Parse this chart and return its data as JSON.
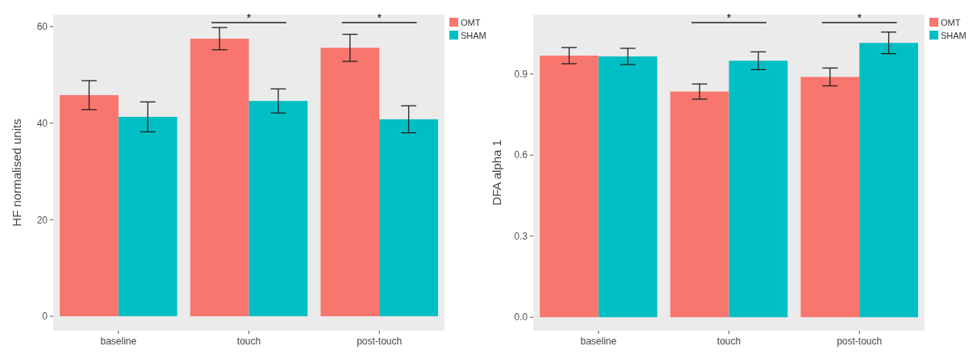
{
  "chart_data": [
    {
      "type": "bar",
      "ylabel": "HF normalised units",
      "categories": [
        "baseline",
        "touch",
        "post-touch"
      ],
      "series": [
        {
          "name": "OMT",
          "color": "#f8766d",
          "values": [
            45.8,
            57.5,
            55.6
          ],
          "errors": [
            3.0,
            2.3,
            2.8
          ]
        },
        {
          "name": "SHAM",
          "color": "#00bfc4",
          "values": [
            41.3,
            44.6,
            40.8
          ],
          "errors": [
            3.1,
            2.5,
            2.8
          ]
        }
      ],
      "ylim": [
        -3,
        62.5
      ],
      "yticks": [
        0,
        20,
        40,
        60
      ],
      "grid": false,
      "legend": "top right",
      "annotations": [
        "*",
        "*"
      ]
    },
    {
      "type": "bar",
      "ylabel": "DFA alpha 1",
      "categories": [
        "baseline",
        "touch",
        "post-touch"
      ],
      "series": [
        {
          "name": "OMT",
          "color": "#f8766d",
          "values": [
            0.968,
            0.835,
            0.889
          ],
          "errors": [
            0.03,
            0.028,
            0.033
          ]
        },
        {
          "name": "SHAM",
          "color": "#00bfc4",
          "values": [
            0.965,
            0.949,
            1.015
          ],
          "errors": [
            0.03,
            0.033,
            0.04
          ]
        }
      ],
      "ylim": [
        -0.05,
        1.12
      ],
      "yticks": [
        {
          "value": 0,
          "label": "0.0"
        },
        {
          "value": 0.3,
          "label": "0.3"
        },
        {
          "value": 0.6,
          "label": "0.6"
        },
        {
          "value": 0.9,
          "label": "0.9"
        }
      ],
      "grid": false,
      "legend": "top right",
      "annotations": [
        "*",
        "*"
      ]
    }
  ]
}
